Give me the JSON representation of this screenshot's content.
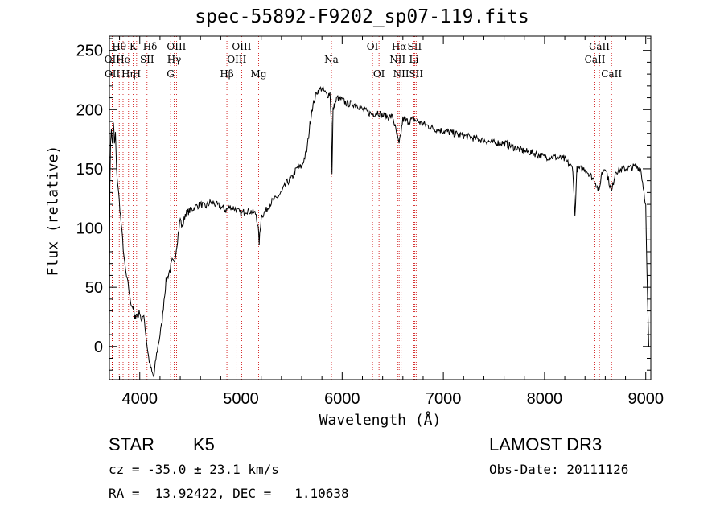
{
  "chart_data": {
    "type": "line",
    "title": "spec-55892-F9202_sp07-119.fits",
    "xlabel": "Wavelength (Å)",
    "ylabel": "Flux (relative)",
    "xlim": [
      3700,
      9050
    ],
    "ylim": [
      -28,
      262
    ],
    "xticks": [
      4000,
      5000,
      6000,
      7000,
      8000,
      9000
    ],
    "yticks": [
      0,
      50,
      100,
      150,
      200,
      250
    ],
    "series": [
      {
        "name": "flux",
        "points": [
          [
            3700,
            0
          ],
          [
            3705,
            140
          ],
          [
            3712,
            170
          ],
          [
            3720,
            185
          ],
          [
            3730,
            170
          ],
          [
            3740,
            190
          ],
          [
            3750,
            170
          ],
          [
            3760,
            180
          ],
          [
            3770,
            150
          ],
          [
            3790,
            130
          ],
          [
            3810,
            110
          ],
          [
            3830,
            90
          ],
          [
            3850,
            70
          ],
          [
            3870,
            58
          ],
          [
            3890,
            50
          ],
          [
            3900,
            42
          ],
          [
            3920,
            35
          ],
          [
            3940,
            32
          ],
          [
            3950,
            22
          ],
          [
            3965,
            28
          ],
          [
            3980,
            25
          ],
          [
            4000,
            30
          ],
          [
            4020,
            20
          ],
          [
            4040,
            28
          ],
          [
            4060,
            10
          ],
          [
            4080,
            -5
          ],
          [
            4100,
            -15
          ],
          [
            4120,
            -22
          ],
          [
            4140,
            -26
          ],
          [
            4160,
            -10
          ],
          [
            4180,
            0
          ],
          [
            4200,
            10
          ],
          [
            4220,
            20
          ],
          [
            4240,
            40
          ],
          [
            4260,
            55
          ],
          [
            4280,
            60
          ],
          [
            4300,
            65
          ],
          [
            4320,
            72
          ],
          [
            4340,
            70
          ],
          [
            4360,
            82
          ],
          [
            4380,
            95
          ],
          [
            4400,
            108
          ],
          [
            4420,
            100
          ],
          [
            4450,
            112
          ],
          [
            4500,
            115
          ],
          [
            4550,
            118
          ],
          [
            4600,
            120
          ],
          [
            4650,
            118
          ],
          [
            4700,
            122
          ],
          [
            4750,
            120
          ],
          [
            4800,
            118
          ],
          [
            4850,
            115
          ],
          [
            4900,
            118
          ],
          [
            4950,
            116
          ],
          [
            5000,
            112
          ],
          [
            5050,
            115
          ],
          [
            5100,
            114
          ],
          [
            5150,
            112
          ],
          [
            5170,
            100
          ],
          [
            5180,
            88
          ],
          [
            5190,
            98
          ],
          [
            5200,
            110
          ],
          [
            5250,
            115
          ],
          [
            5300,
            122
          ],
          [
            5350,
            125
          ],
          [
            5400,
            130
          ],
          [
            5450,
            138
          ],
          [
            5500,
            142
          ],
          [
            5550,
            150
          ],
          [
            5600,
            152
          ],
          [
            5650,
            165
          ],
          [
            5700,
            200
          ],
          [
            5750,
            215
          ],
          [
            5800,
            218
          ],
          [
            5850,
            212
          ],
          [
            5880,
            214
          ],
          [
            5893,
            190
          ],
          [
            5900,
            145
          ],
          [
            5910,
            200
          ],
          [
            5950,
            210
          ],
          [
            6000,
            208
          ],
          [
            6050,
            205
          ],
          [
            6100,
            205
          ],
          [
            6150,
            204
          ],
          [
            6200,
            200
          ],
          [
            6250,
            198
          ],
          [
            6300,
            196
          ],
          [
            6350,
            198
          ],
          [
            6400,
            195
          ],
          [
            6450,
            194
          ],
          [
            6500,
            194
          ],
          [
            6563,
            170
          ],
          [
            6600,
            192
          ],
          [
            6650,
            190
          ],
          [
            6700,
            192
          ],
          [
            6750,
            190
          ],
          [
            6800,
            188
          ],
          [
            6850,
            186
          ],
          [
            6900,
            184
          ],
          [
            7000,
            182
          ],
          [
            7100,
            180
          ],
          [
            7200,
            178
          ],
          [
            7300,
            176
          ],
          [
            7400,
            174
          ],
          [
            7500,
            172
          ],
          [
            7600,
            172
          ],
          [
            7700,
            168
          ],
          [
            7800,
            165
          ],
          [
            7900,
            163
          ],
          [
            8000,
            160
          ],
          [
            8100,
            160
          ],
          [
            8200,
            158
          ],
          [
            8280,
            150
          ],
          [
            8300,
            110
          ],
          [
            8320,
            150
          ],
          [
            8400,
            150
          ],
          [
            8498,
            140
          ],
          [
            8540,
            130
          ],
          [
            8560,
            145
          ],
          [
            8600,
            152
          ],
          [
            8662,
            130
          ],
          [
            8700,
            148
          ],
          [
            8800,
            150
          ],
          [
            8900,
            152
          ],
          [
            8950,
            150
          ],
          [
            9000,
            120
          ],
          [
            9010,
            70
          ],
          [
            9030,
            0
          ]
        ]
      }
    ],
    "lines": [
      {
        "label": "Hθ",
        "x": 3797,
        "row": 1
      },
      {
        "label": "OII",
        "x": 3727,
        "row": 2
      },
      {
        "label": "OII",
        "x": 3729,
        "row": 3
      },
      {
        "label": "He",
        "x": 3835,
        "row": 2
      },
      {
        "label": "Hη",
        "x": 3889,
        "row": 3
      },
      {
        "label": "K",
        "x": 3934,
        "row": 1
      },
      {
        "label": "H",
        "x": 3969,
        "row": 3
      },
      {
        "label": "SII",
        "x": 4072,
        "row": 2
      },
      {
        "label": "Hδ",
        "x": 4102,
        "row": 1
      },
      {
        "label": "OIII",
        "x": 4363,
        "row": 1
      },
      {
        "label": "Hγ",
        "x": 4340,
        "row": 2
      },
      {
        "label": "G",
        "x": 4305,
        "row": 3
      },
      {
        "label": "Hβ",
        "x": 4861,
        "row": 3
      },
      {
        "label": "OIII",
        "x": 5007,
        "row": 1
      },
      {
        "label": "OIII",
        "x": 4959,
        "row": 2
      },
      {
        "label": "Mg",
        "x": 5175,
        "row": 3
      },
      {
        "label": "Na",
        "x": 5894,
        "row": 2
      },
      {
        "label": "OI",
        "x": 6300,
        "row": 1
      },
      {
        "label": "OI",
        "x": 6364,
        "row": 3
      },
      {
        "label": "Hα",
        "x": 6563,
        "row": 1
      },
      {
        "label": "NII",
        "x": 6548,
        "row": 2
      },
      {
        "label": "NII",
        "x": 6583,
        "row": 3
      },
      {
        "label": "SII",
        "x": 6716,
        "row": 1
      },
      {
        "label": "Li",
        "x": 6708,
        "row": 2
      },
      {
        "label": "SII",
        "x": 6731,
        "row": 3
      },
      {
        "label": "CaII",
        "x": 8542,
        "row": 1
      },
      {
        "label": "CaII",
        "x": 8498,
        "row": 2
      },
      {
        "label": "CaII",
        "x": 8662,
        "row": 3
      }
    ]
  },
  "info": {
    "object_class": "STAR",
    "subclass": "K5",
    "survey": "LAMOST DR3",
    "cz": "cz = -35.0 ± 23.1 km/s",
    "obs_date": "Obs-Date: 20111126",
    "coords": "RA =  13.92422, DEC =   1.10638"
  },
  "colors": {
    "line_marker": "#cc0000",
    "spectrum": "#000000"
  }
}
